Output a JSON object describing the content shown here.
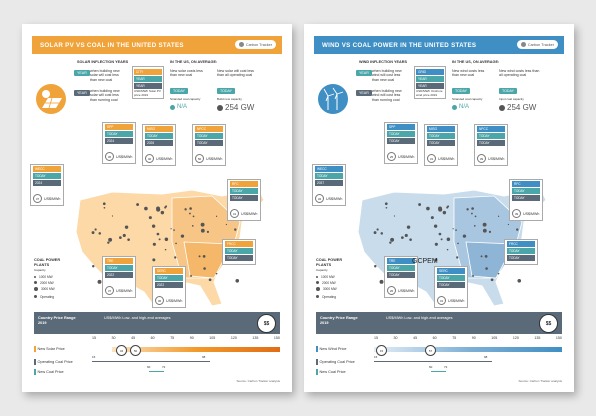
{
  "left": {
    "title": "SOLAR PV VS COAL IN THE UNITED STATES",
    "logo": "Carbon Tracker",
    "inflection_heading": "SOLAR INFLECTION YEARS",
    "year_pill": "YEAR",
    "when_new": "when building new solar will cost less than new coal",
    "when_running": "when building new solar will cost less than running coal",
    "box_top": "CITY",
    "box_mid": "YEAR",
    "box_bot": "YEAR",
    "box_note": "USD/MWh Solar PV price 2019",
    "us_heading": "IN THE US, ON AVERAGE:",
    "avg_new": "New solar costs less than new coal",
    "avg_new_year": "TODAY",
    "avg_all": "New solar will cost less than all operating coal",
    "avg_all_year": "TODAY",
    "stranded_label": "Stranded coal capacity",
    "stranded_value": "N/A",
    "build_label": "Build new capacity",
    "build_value": "254 GW",
    "legend_title": "COAL POWER PLANTS",
    "legend_capacity": "Capacity",
    "legend_items": [
      "1000 MW",
      "2000 MW",
      "3000 MW"
    ],
    "legend_operating": "Operating",
    "price_left": "Country Price Range 2019",
    "price_right": "US$/MWh Low- and high-end averages",
    "price_badge": "$$",
    "ticks": [
      "15",
      "30",
      "45",
      "60",
      "75",
      "90",
      "105",
      "120",
      "135",
      "150"
    ],
    "row1": "New Solar Price",
    "row2": "Operating Coal Price",
    "row3": "New Coal Price",
    "marker1a": "34",
    "marker1b": "50",
    "row2_min": "15",
    "row2_max": "98",
    "row3_a": "60",
    "row3_b": "72",
    "source": "Source: Carbon Tracker analysis",
    "cards": [
      {
        "name": "WECC",
        "r1": "TODAY",
        "r2": "2024",
        "val": "37",
        "unit": "US$/MWh"
      },
      {
        "name": "SPP",
        "r1": "TODAY",
        "r2": "2024",
        "val": "36",
        "unit": "US$/MWh"
      },
      {
        "name": "MISO",
        "r1": "TODAY",
        "r2": "2026",
        "val": "40",
        "unit": "US$/MWh"
      },
      {
        "name": "NPCC",
        "r1": "TODAY",
        "r2": "TODAY",
        "val": "50",
        "unit": "US$/MWh"
      },
      {
        "name": "RFC",
        "r1": "TODAY",
        "r2": "TODAY",
        "val": "41",
        "unit": "US$/MWh"
      },
      {
        "name": "TRE",
        "r1": "TODAY",
        "r2": "2022",
        "val": "37",
        "unit": "US$/MWh"
      },
      {
        "name": "SERC",
        "r1": "TODAY",
        "r2": "2022",
        "val": "36",
        "unit": "US$/MWh"
      },
      {
        "name": "FRCC",
        "r1": "TODAY",
        "r2": "TODAY",
        "val": "",
        "unit": ""
      }
    ]
  },
  "right": {
    "title": "WIND VS COAL POWER IN THE UNITED STATES",
    "logo": "Carbon Tracker",
    "inflection_heading": "WIND INFLECTION YEARS",
    "year_pill": "YEAR",
    "when_new": "when building new wind will cost less than new coal",
    "when_running": "when building new wind will cost less than running coal",
    "box_top": "GRID",
    "box_mid": "YEAR",
    "box_bot": "YEAR",
    "box_note": "USD/MWh Onshore wind price 2019",
    "us_heading": "IN THE US, ON AVERAGE:",
    "avg_new": "New wind costs less than new coal",
    "avg_new_year": "TODAY",
    "avg_all": "New wind costs less than all operating coal",
    "avg_all_year": "TODAY",
    "stranded_label": "Stranded coal capacity",
    "stranded_value": "N/A",
    "build_label": "Input coal capacity",
    "build_value": "254 GW",
    "legend_title": "COAL POWER PLANTS",
    "legend_capacity": "Capacity",
    "legend_items": [
      "1000 MW",
      "2000 MW",
      "3000 MW"
    ],
    "legend_operating": "Operating",
    "price_left": "Country Price Range 2019",
    "price_right": "US$/MWh Low- and high-end averages",
    "price_badge": "$$",
    "ticks": [
      "15",
      "30",
      "45",
      "60",
      "75",
      "90",
      "105",
      "120",
      "135",
      "150"
    ],
    "row1": "New Wind Price",
    "row2": "Operating Coal Price",
    "row3": "New Coal Price",
    "marker1a": "15",
    "marker1b": "57",
    "row2_min": "15",
    "row2_max": "98",
    "row3_a": "60",
    "row3_b": "72",
    "source": "Source: Carbon Tracker analysis",
    "gcpem": "GCPEM",
    "cards": [
      {
        "name": "WECC",
        "r1": "TODAY",
        "r2": "2037",
        "val": "32",
        "unit": "US$/MWh"
      },
      {
        "name": "SPP",
        "r1": "TODAY",
        "r2": "TODAY",
        "val": "25",
        "unit": "US$/MWh"
      },
      {
        "name": "MISO",
        "r1": "TODAY",
        "r2": "TODAY",
        "val": "31",
        "unit": "US$/MWh"
      },
      {
        "name": "NPCC",
        "r1": "TODAY",
        "r2": "TODAY",
        "val": "39",
        "unit": "US$/MWh"
      },
      {
        "name": "RFC",
        "r1": "TODAY",
        "r2": "TODAY",
        "val": "39",
        "unit": "US$/MWh"
      },
      {
        "name": "TRE",
        "r1": "TODAY",
        "r2": "TODAY",
        "val": "26",
        "unit": "US$/MWh"
      },
      {
        "name": "SERC",
        "r1": "TODAY",
        "r2": "TODAY",
        "val": "31",
        "unit": "US$/MWh"
      },
      {
        "name": "FRCC",
        "r1": "TODAY",
        "r2": "TODAY",
        "val": "",
        "unit": ""
      }
    ]
  },
  "colors": {
    "solar": "#f0a33a",
    "solar_light": "#fcd9a6",
    "wind": "#3f8fc4",
    "wind_light": "#c9dcec",
    "teal": "#4aa6a8",
    "slate": "#5a6a78"
  }
}
